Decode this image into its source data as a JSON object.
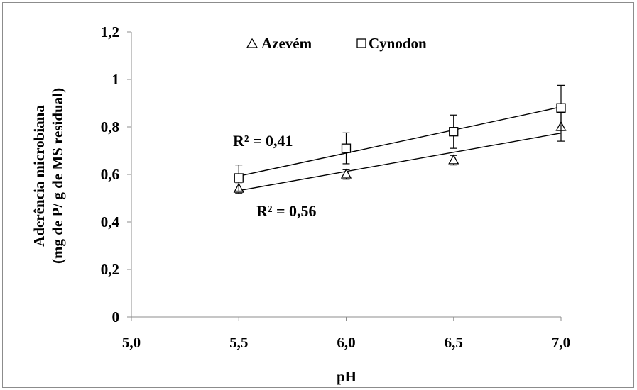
{
  "chart_data": {
    "type": "scatter",
    "title": "",
    "xlabel": "pH",
    "ylabel_lines": [
      "Aderência microbiana",
      "(mg de P/ g de MS residual)"
    ],
    "xlim": [
      5.0,
      7.0
    ],
    "ylim": [
      0,
      1.2
    ],
    "x_ticks": [
      "5,0",
      "5,5",
      "6,0",
      "6,5",
      "7,0"
    ],
    "x_tick_values": [
      5.0,
      5.5,
      6.0,
      6.5,
      7.0
    ],
    "y_ticks": [
      "0",
      "0,2",
      "0,4",
      "0,6",
      "0,8",
      "1",
      "1,2"
    ],
    "y_tick_values": [
      0,
      0.2,
      0.4,
      0.6,
      0.8,
      1.0,
      1.2
    ],
    "grid": false,
    "legend_position": "top-center",
    "series": [
      {
        "name": "Azevém",
        "marker": "triangle",
        "x": [
          5.5,
          6.0,
          6.5,
          7.0
        ],
        "y": [
          0.54,
          0.6,
          0.66,
          0.8
        ],
        "err": [
          0.02,
          0.02,
          0.02,
          0.06
        ],
        "trend": [
          0.532,
          0.774
        ],
        "r2_label": "R² = 0,56"
      },
      {
        "name": "Cynodon",
        "marker": "square",
        "x": [
          5.5,
          6.0,
          6.5,
          7.0
        ],
        "y": [
          0.585,
          0.71,
          0.78,
          0.88
        ],
        "err": [
          0.055,
          0.065,
          0.07,
          0.095
        ],
        "trend": [
          0.593,
          0.884
        ],
        "r2_label": "R² = 0,41"
      }
    ]
  }
}
